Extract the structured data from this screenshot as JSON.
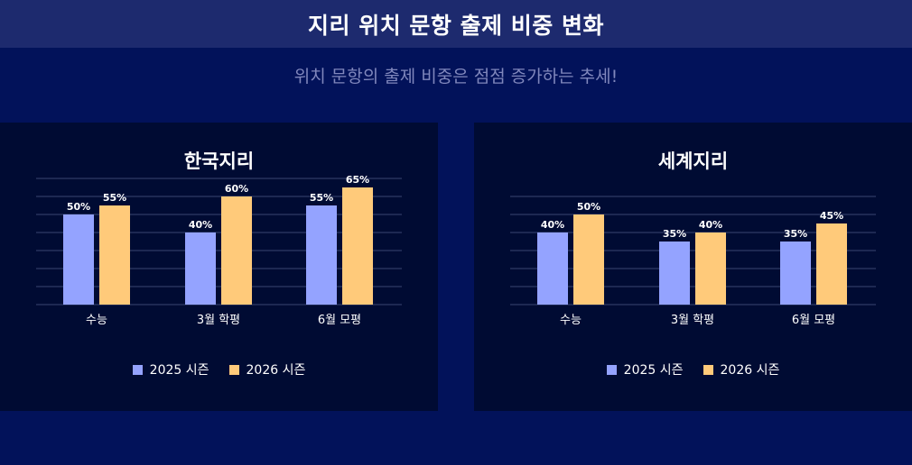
{
  "header": {
    "title": "지리 위치 문항 출제 비중 변화",
    "subtitle": "위치 문항의 출제 비중은 점점 증가하는 추세!"
  },
  "colors": {
    "series_2025": "#94a3ff",
    "series_2026": "#ffca7a",
    "gridline": "#3a4470"
  },
  "chart_data": [
    {
      "type": "bar",
      "title": "한국지리",
      "categories": [
        "수능",
        "3월 학평",
        "6월 모평"
      ],
      "series": [
        {
          "name": "2025 시즌",
          "values": [
            50,
            40,
            55
          ]
        },
        {
          "name": "2026 시즌",
          "values": [
            55,
            60,
            65
          ]
        }
      ],
      "value_labels": [
        [
          "50%",
          "40%",
          "55%"
        ],
        [
          "55%",
          "60%",
          "65%"
        ]
      ],
      "ylim": [
        0,
        70
      ],
      "grid": true,
      "legend": "bottom"
    },
    {
      "type": "bar",
      "title": "세계지리",
      "categories": [
        "수능",
        "3월 학평",
        "6월 모평"
      ],
      "series": [
        {
          "name": "2025 시즌",
          "values": [
            40,
            35,
            35
          ]
        },
        {
          "name": "2026 시즌",
          "values": [
            50,
            40,
            45
          ]
        }
      ],
      "value_labels": [
        [
          "40%",
          "35%",
          "35%"
        ],
        [
          "50%",
          "40%",
          "45%"
        ]
      ],
      "ylim": [
        0,
        60
      ],
      "grid": true,
      "legend": "bottom"
    }
  ]
}
